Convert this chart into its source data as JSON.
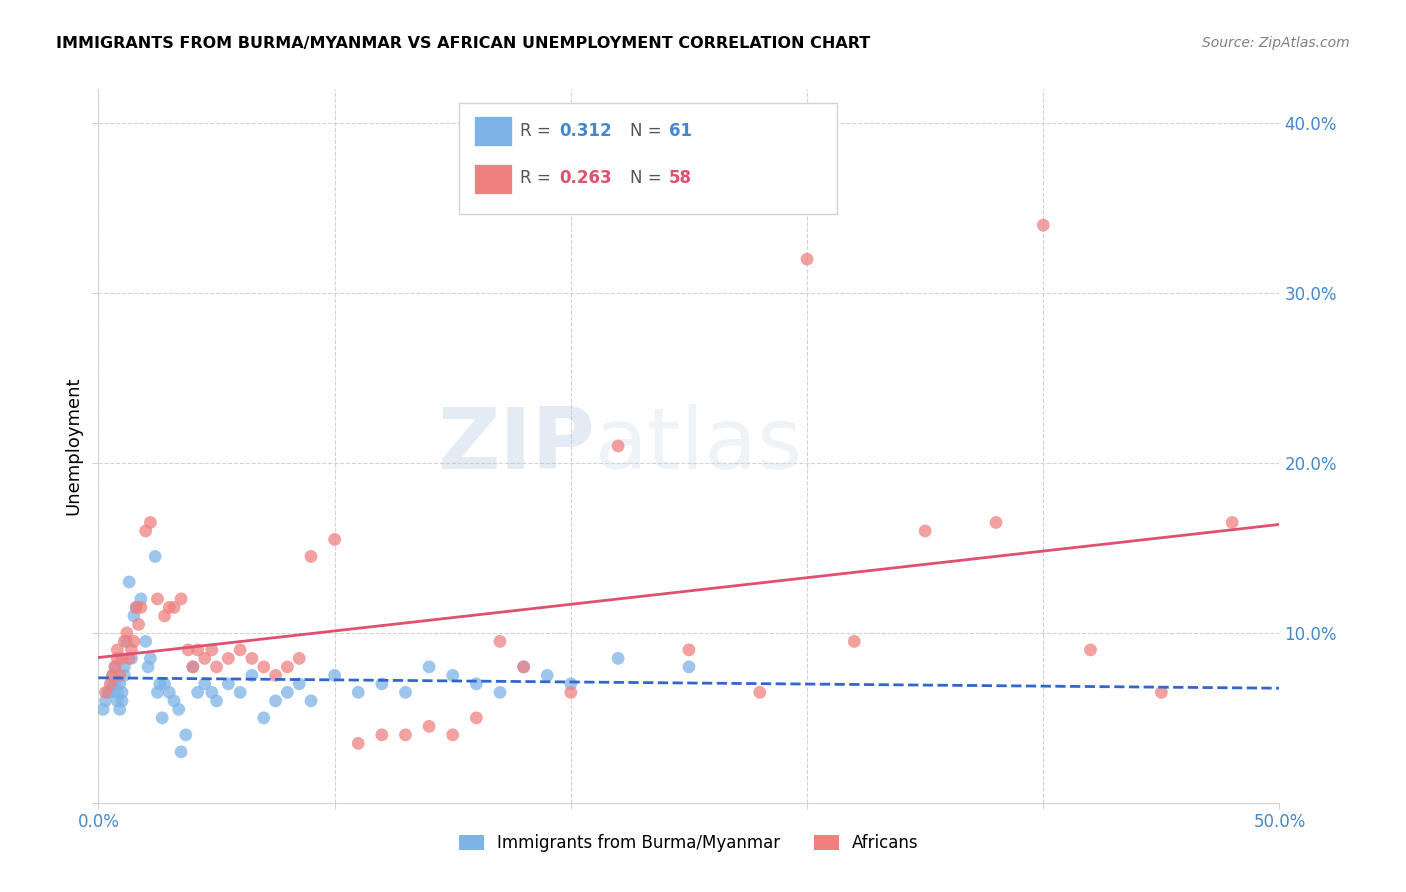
{
  "title": "IMMIGRANTS FROM BURMA/MYANMAR VS AFRICAN UNEMPLOYMENT CORRELATION CHART",
  "source": "Source: ZipAtlas.com",
  "ylabel": "Unemployment",
  "yticks": [
    0.0,
    0.1,
    0.2,
    0.3,
    0.4
  ],
  "ytick_labels": [
    "",
    "10.0%",
    "20.0%",
    "30.0%",
    "40.0%"
  ],
  "xlim": [
    0.0,
    0.5
  ],
  "ylim": [
    0.0,
    0.42
  ],
  "color_blue": "#7EB3E8",
  "color_pink": "#F08080",
  "color_blue_text": "#4488CC",
  "color_pink_text": "#E05070",
  "watermark_zip": "ZIP",
  "watermark_atlas": "atlas",
  "blue_x": [
    0.002,
    0.003,
    0.004,
    0.005,
    0.006,
    0.006,
    0.007,
    0.007,
    0.008,
    0.008,
    0.009,
    0.009,
    0.01,
    0.01,
    0.011,
    0.011,
    0.012,
    0.013,
    0.014,
    0.015,
    0.016,
    0.018,
    0.02,
    0.021,
    0.022,
    0.024,
    0.025,
    0.026,
    0.027,
    0.028,
    0.03,
    0.032,
    0.034,
    0.035,
    0.037,
    0.04,
    0.042,
    0.045,
    0.048,
    0.05,
    0.055,
    0.06,
    0.065,
    0.07,
    0.075,
    0.08,
    0.085,
    0.09,
    0.1,
    0.11,
    0.12,
    0.13,
    0.14,
    0.15,
    0.16,
    0.17,
    0.18,
    0.19,
    0.2,
    0.22,
    0.25
  ],
  "blue_y": [
    0.055,
    0.06,
    0.065,
    0.065,
    0.07,
    0.075,
    0.08,
    0.07,
    0.065,
    0.06,
    0.055,
    0.07,
    0.065,
    0.06,
    0.075,
    0.08,
    0.095,
    0.13,
    0.085,
    0.11,
    0.115,
    0.12,
    0.095,
    0.08,
    0.085,
    0.145,
    0.065,
    0.07,
    0.05,
    0.07,
    0.065,
    0.06,
    0.055,
    0.03,
    0.04,
    0.08,
    0.065,
    0.07,
    0.065,
    0.06,
    0.07,
    0.065,
    0.075,
    0.05,
    0.06,
    0.065,
    0.07,
    0.06,
    0.075,
    0.065,
    0.07,
    0.065,
    0.08,
    0.075,
    0.07,
    0.065,
    0.08,
    0.075,
    0.07,
    0.085,
    0.08
  ],
  "pink_x": [
    0.003,
    0.005,
    0.006,
    0.007,
    0.008,
    0.008,
    0.009,
    0.01,
    0.011,
    0.012,
    0.013,
    0.014,
    0.015,
    0.016,
    0.017,
    0.018,
    0.02,
    0.022,
    0.025,
    0.028,
    0.03,
    0.032,
    0.035,
    0.038,
    0.04,
    0.042,
    0.045,
    0.048,
    0.05,
    0.055,
    0.06,
    0.065,
    0.07,
    0.075,
    0.08,
    0.085,
    0.09,
    0.1,
    0.11,
    0.12,
    0.13,
    0.14,
    0.15,
    0.16,
    0.17,
    0.18,
    0.2,
    0.22,
    0.25,
    0.28,
    0.3,
    0.32,
    0.35,
    0.38,
    0.4,
    0.42,
    0.45,
    0.48
  ],
  "pink_y": [
    0.065,
    0.07,
    0.075,
    0.08,
    0.085,
    0.09,
    0.075,
    0.085,
    0.095,
    0.1,
    0.085,
    0.09,
    0.095,
    0.115,
    0.105,
    0.115,
    0.16,
    0.165,
    0.12,
    0.11,
    0.115,
    0.115,
    0.12,
    0.09,
    0.08,
    0.09,
    0.085,
    0.09,
    0.08,
    0.085,
    0.09,
    0.085,
    0.08,
    0.075,
    0.08,
    0.085,
    0.145,
    0.155,
    0.035,
    0.04,
    0.04,
    0.045,
    0.04,
    0.05,
    0.095,
    0.08,
    0.065,
    0.21,
    0.09,
    0.065,
    0.32,
    0.095,
    0.16,
    0.165,
    0.34,
    0.09,
    0.065,
    0.165
  ]
}
